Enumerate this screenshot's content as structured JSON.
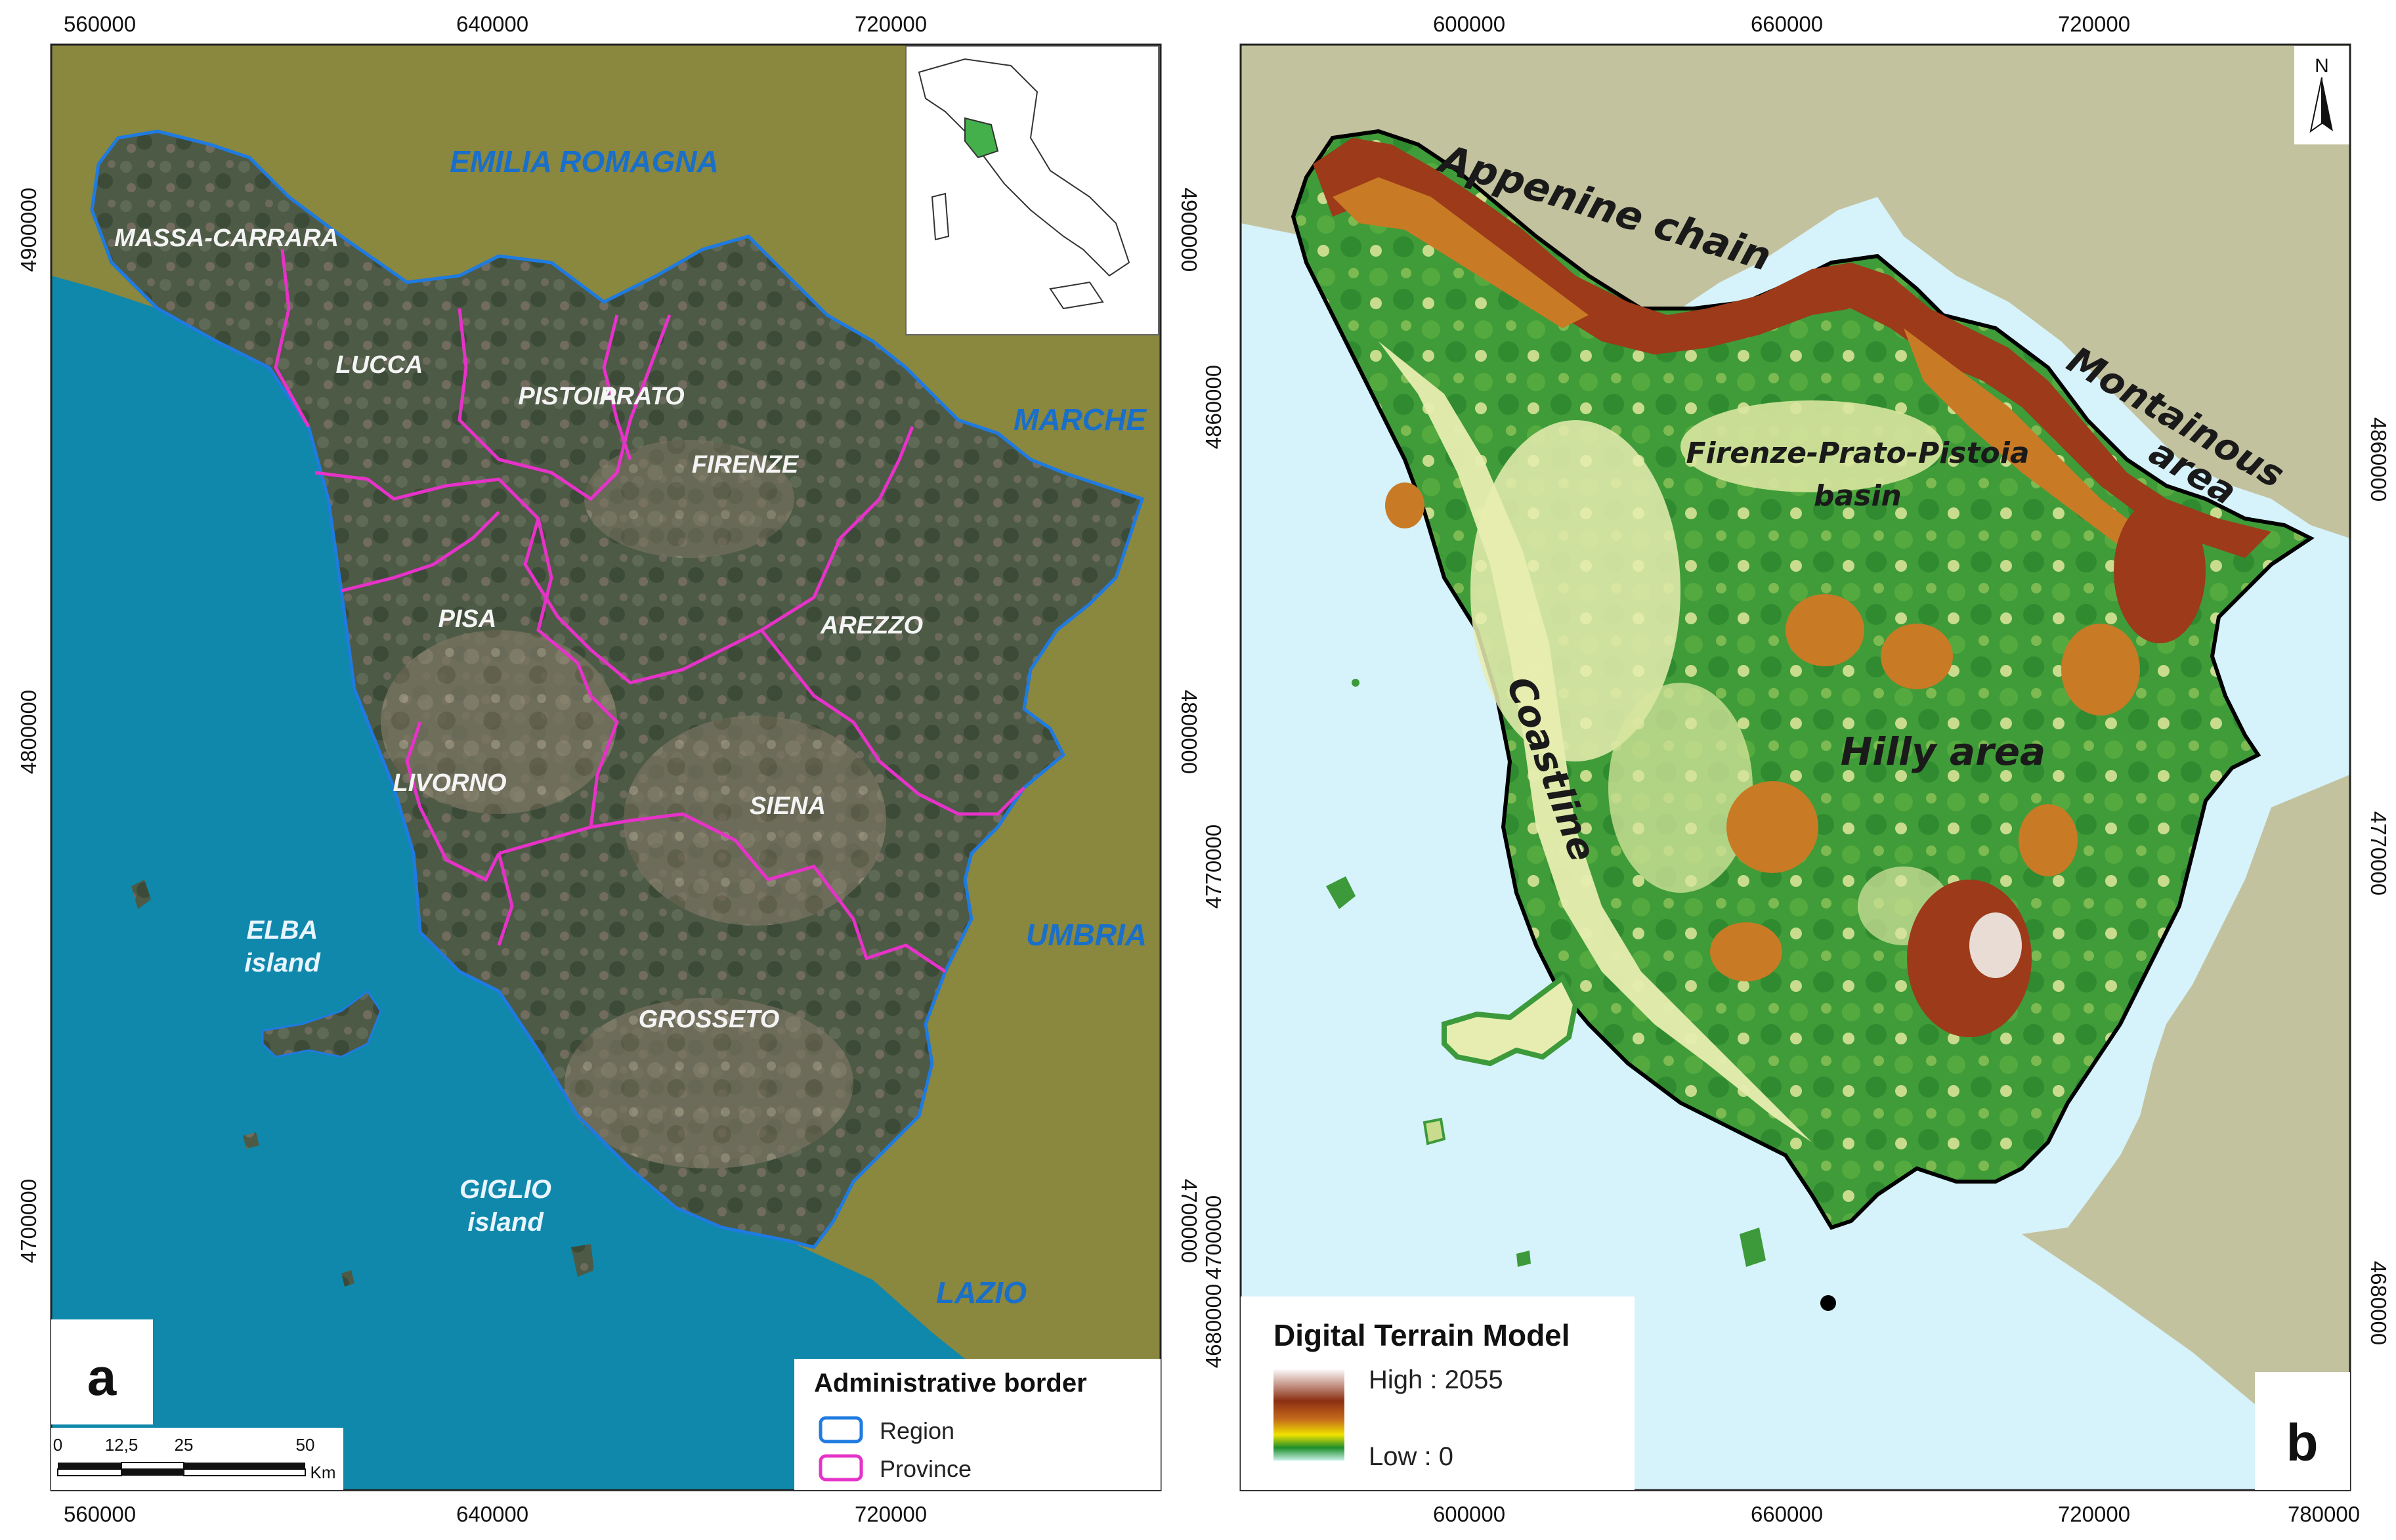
{
  "panel_a": {
    "letter": "a",
    "x_ticks": [
      "560000",
      "640000",
      "720000"
    ],
    "y_ticks": [
      "4900000",
      "4800000",
      "4700000"
    ],
    "provinces": [
      "MASSA-CARRARA",
      "LUCCA",
      "PISTOIA",
      "PRATO",
      "FIRENZE",
      "PISA",
      "AREZZO",
      "LIVORNO",
      "SIENA",
      "GROSSETO"
    ],
    "regions": [
      "EMILIA ROMAGNA",
      "MARCHE",
      "UMBRIA",
      "LAZIO"
    ],
    "islands": {
      "elba": [
        "ELBA",
        "island"
      ],
      "giglio": [
        "GIGLIO",
        "island"
      ]
    },
    "legend": {
      "title": "Administrative border",
      "region": "Region",
      "province": "Province"
    },
    "scale": {
      "labels": [
        "0",
        "12,5",
        "25",
        "50"
      ],
      "unit": "Km"
    },
    "colors": {
      "region_border": "#1f7be0",
      "province_border": "#e632c8",
      "neighbour": "#8a873e",
      "sea": "#0f88ab"
    }
  },
  "panel_b": {
    "letter": "b",
    "x_ticks": [
      "600000",
      "660000",
      "720000",
      "780000"
    ],
    "y_ticks": [
      "4860000",
      "4770000",
      "4700000",
      "4680000"
    ],
    "right_y_ticks": [
      "4860000",
      "4770000",
      "4680000"
    ],
    "labels": {
      "appenine": "Appenine chain",
      "montainous": [
        "Montainous",
        "area"
      ],
      "basin": [
        "Firenze-Prato-Pistoia",
        "basin"
      ],
      "coastline": "Coastline",
      "hilly": "Hilly area"
    },
    "north": "N",
    "legend": {
      "title": "Digital Terrain Model",
      "high": "High : 2055",
      "low": "Low : 0"
    },
    "colors": {
      "sea": "#d6f2fb",
      "land_outside": "#c3c29e",
      "lowland": "#e7edb0",
      "hills": "#3c9a3a",
      "mountains": "#9c3a1a"
    }
  }
}
